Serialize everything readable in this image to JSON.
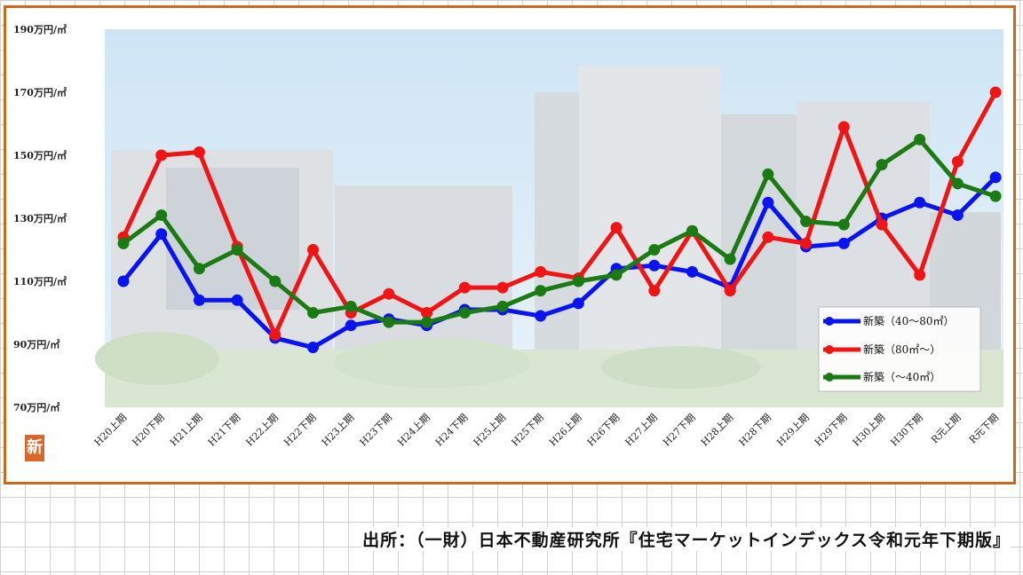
{
  "chart_data": {
    "type": "line",
    "ylim": [
      70,
      190
    ],
    "y_tick_values": [
      70,
      90,
      110,
      130,
      150,
      170,
      190
    ],
    "y_tick_labels": [
      "70万円/㎡",
      "90万円/㎡",
      "110万円/㎡",
      "130万円/㎡",
      "150万円/㎡",
      "170万円/㎡",
      "190万円/㎡"
    ],
    "categories": [
      "H20上期",
      "H20下期",
      "H21上期",
      "H21下期",
      "H22上期",
      "H22下期",
      "H23上期",
      "H23下期",
      "H24上期",
      "H24下期",
      "H25上期",
      "H25下期",
      "H26上期",
      "H26下期",
      "H27上期",
      "H27下期",
      "H28上期",
      "H28下期",
      "H29上期",
      "H29下期",
      "H30上期",
      "H30下期",
      "R元上期",
      "R元下期"
    ],
    "series": [
      {
        "name": "新築（40～80㎡）",
        "color": "#0a14f0",
        "values": [
          110,
          125,
          104,
          104,
          92,
          89,
          96,
          98,
          96,
          101,
          101,
          99,
          103,
          114,
          115,
          113,
          108,
          135,
          121,
          122,
          130,
          135,
          131,
          143
        ]
      },
      {
        "name": "新築（80㎡～）",
        "color": "#f01414",
        "values": [
          124,
          150,
          151,
          121,
          93,
          120,
          100,
          106,
          100,
          108,
          108,
          113,
          111,
          127,
          107,
          126,
          107,
          124,
          122,
          159,
          128,
          112,
          148,
          170
        ]
      },
      {
        "name": "新築（～40㎡）",
        "color": "#1c7a14",
        "values": [
          122,
          131,
          114,
          120,
          110,
          100,
          102,
          97,
          97,
          100,
          102,
          107,
          110,
          112,
          120,
          126,
          117,
          144,
          129,
          128,
          147,
          155,
          141,
          137
        ]
      }
    ],
    "legend_position": "bottom-right",
    "grid": false
  },
  "badge": "新",
  "source": "出所：（一財）日本不動産研究所『住宅マーケットインデックス令和元年下期版』"
}
